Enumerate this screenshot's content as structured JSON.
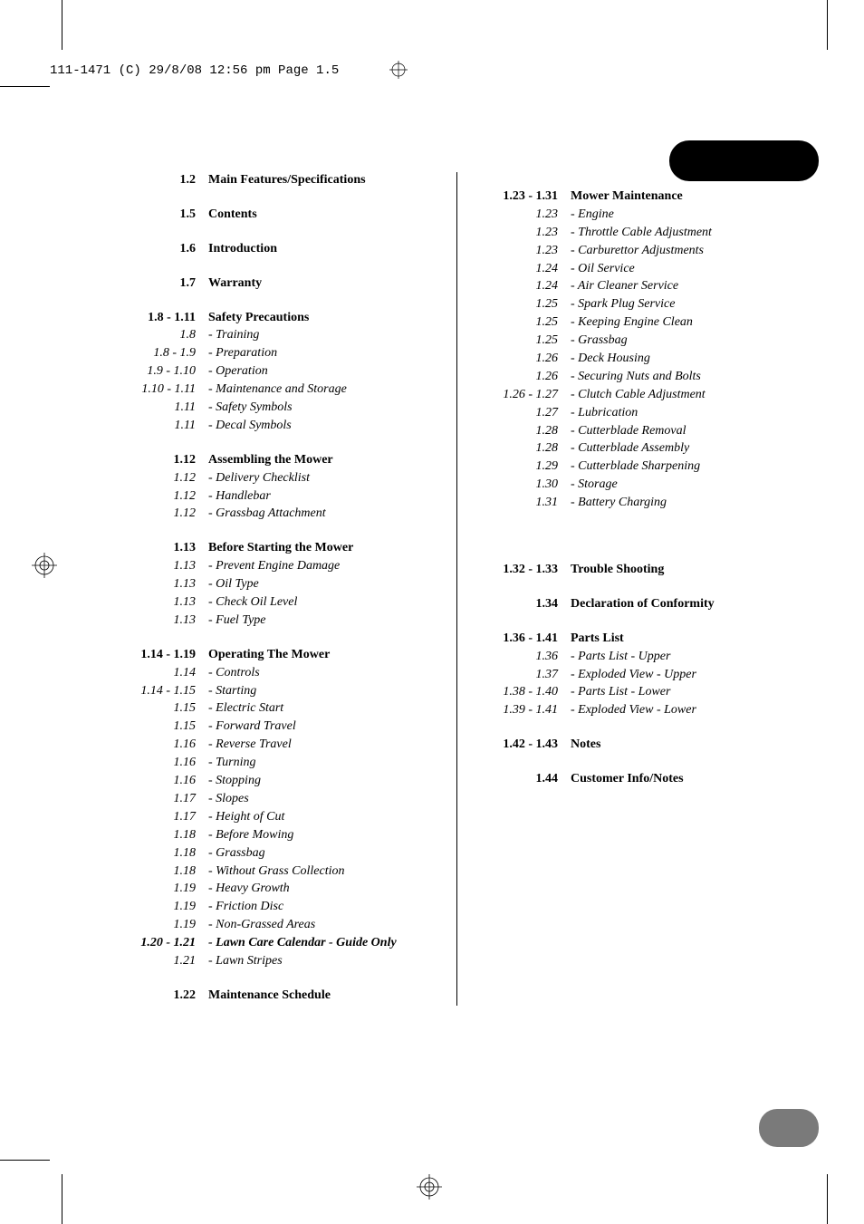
{
  "header": "111-1471 (C)  29/8/08  12:56 pm  Page 1.5",
  "left": [
    {
      "type": "row",
      "page": "1.2",
      "text": "Main Features/Specifications",
      "bold": true
    },
    {
      "type": "spacer"
    },
    {
      "type": "row",
      "page": "1.5",
      "text": "Contents",
      "bold": true
    },
    {
      "type": "spacer"
    },
    {
      "type": "row",
      "page": "1.6",
      "text": "Introduction",
      "bold": true
    },
    {
      "type": "spacer"
    },
    {
      "type": "row",
      "page": "1.7",
      "text": "Warranty",
      "bold": true
    },
    {
      "type": "spacer"
    },
    {
      "type": "row",
      "page": "1.8 - 1.11",
      "text": "Safety Precautions",
      "bold": true
    },
    {
      "type": "row",
      "page": "1.8",
      "text": "- Training",
      "italic": true
    },
    {
      "type": "row",
      "page": "1.8 - 1.9",
      "text": "- Preparation",
      "italic": true
    },
    {
      "type": "row",
      "page": "1.9 - 1.10",
      "text": "- Operation",
      "italic": true
    },
    {
      "type": "row",
      "page": "1.10 - 1.11",
      "text": "- Maintenance and Storage",
      "italic": true
    },
    {
      "type": "row",
      "page": "1.11",
      "text": "- Safety Symbols",
      "italic": true
    },
    {
      "type": "row",
      "page": "1.11",
      "text": "- Decal Symbols",
      "italic": true
    },
    {
      "type": "spacer"
    },
    {
      "type": "row",
      "page": "1.12",
      "text": "Assembling the Mower",
      "bold": true
    },
    {
      "type": "row",
      "page": "1.12",
      "text": "- Delivery Checklist",
      "italic": true
    },
    {
      "type": "row",
      "page": "1.12",
      "text": "- Handlebar",
      "italic": true
    },
    {
      "type": "row",
      "page": "1.12",
      "text": "- Grassbag Attachment",
      "italic": true
    },
    {
      "type": "spacer"
    },
    {
      "type": "row",
      "page": "1.13",
      "text": "Before Starting the Mower",
      "bold": true
    },
    {
      "type": "row",
      "page": "1.13",
      "text": "- Prevent Engine Damage",
      "italic": true
    },
    {
      "type": "row",
      "page": "1.13",
      "text": "- Oil Type",
      "italic": true
    },
    {
      "type": "row",
      "page": "1.13",
      "text": "- Check Oil Level",
      "italic": true
    },
    {
      "type": "row",
      "page": "1.13",
      "text": "- Fuel Type",
      "italic": true
    },
    {
      "type": "spacer"
    },
    {
      "type": "row",
      "page": "1.14 - 1.19",
      "text": "Operating The Mower",
      "bold": true
    },
    {
      "type": "row",
      "page": "1.14",
      "text": "- Controls",
      "italic": true
    },
    {
      "type": "row",
      "page": "1.14 - 1.15",
      "text": "- Starting",
      "italic": true
    },
    {
      "type": "row",
      "page": "1.15",
      "text": "- Electric Start",
      "italic": true
    },
    {
      "type": "row",
      "page": "1.15",
      "text": "- Forward Travel",
      "italic": true
    },
    {
      "type": "row",
      "page": "1.16",
      "text": "- Reverse Travel",
      "italic": true
    },
    {
      "type": "row",
      "page": "1.16",
      "text": "- Turning",
      "italic": true
    },
    {
      "type": "row",
      "page": "1.16",
      "text": "- Stopping",
      "italic": true
    },
    {
      "type": "row",
      "page": "1.17",
      "text": "- Slopes",
      "italic": true
    },
    {
      "type": "row",
      "page": "1.17",
      "text": "- Height of Cut",
      "italic": true
    },
    {
      "type": "row",
      "page": "1.18",
      "text": "- Before Mowing",
      "italic": true
    },
    {
      "type": "row",
      "page": "1.18",
      "text": "- Grassbag",
      "italic": true
    },
    {
      "type": "row",
      "page": "1.18",
      "text": "- Without Grass Collection",
      "italic": true
    },
    {
      "type": "row",
      "page": "1.19",
      "text": "- Heavy Growth",
      "italic": true
    },
    {
      "type": "row",
      "page": "1.19",
      "text": "- Friction Disc",
      "italic": true
    },
    {
      "type": "row",
      "page": "1.19",
      "text": "- Non-Grassed Areas",
      "italic": true
    },
    {
      "type": "row",
      "page": "1.20  - 1.21",
      "text": "- Lawn Care Calendar - Guide Only",
      "boldital": true
    },
    {
      "type": "row",
      "page": "1.21",
      "text": "- Lawn Stripes",
      "italic": true
    },
    {
      "type": "spacer"
    },
    {
      "type": "row",
      "page": "1.22",
      "text": "Maintenance Schedule",
      "bold": true
    }
  ],
  "right": [
    {
      "type": "spacer"
    },
    {
      "type": "row",
      "page": "1.23  - 1.31",
      "text": "Mower Maintenance",
      "bold": true
    },
    {
      "type": "row",
      "page": "1.23",
      "text": "- Engine",
      "italic": true
    },
    {
      "type": "row",
      "page": "1.23",
      "text": "- Throttle Cable Adjustment",
      "italic": true
    },
    {
      "type": "row",
      "page": "1.23",
      "text": "- Carburettor Adjustments",
      "italic": true
    },
    {
      "type": "row",
      "page": "1.24",
      "text": "- Oil Service",
      "italic": true
    },
    {
      "type": "row",
      "page": "1.24",
      "text": "- Air Cleaner Service",
      "italic": true
    },
    {
      "type": "row",
      "page": "1.25",
      "text": "- Spark Plug Service",
      "italic": true
    },
    {
      "type": "row",
      "page": "1.25",
      "text": "- Keeping Engine Clean",
      "italic": true
    },
    {
      "type": "row",
      "page": "1.25",
      "text": "- Grassbag",
      "italic": true
    },
    {
      "type": "row",
      "page": "1.26",
      "text": "- Deck Housing",
      "italic": true
    },
    {
      "type": "row",
      "page": "1.26",
      "text": "- Securing Nuts and Bolts",
      "italic": true
    },
    {
      "type": "row",
      "page": "1.26 - 1.27",
      "text": "- Clutch Cable Adjustment",
      "italic": true
    },
    {
      "type": "row",
      "page": "1.27",
      "text": "- Lubrication",
      "italic": true
    },
    {
      "type": "row",
      "page": "1.28",
      "text": "- Cutterblade Removal",
      "italic": true
    },
    {
      "type": "row",
      "page": "1.28",
      "text": "- Cutterblade Assembly",
      "italic": true
    },
    {
      "type": "row",
      "page": "1.29",
      "text": "- Cutterblade Sharpening",
      "italic": true
    },
    {
      "type": "row",
      "page": "1.30",
      "text": "- Storage",
      "italic": true
    },
    {
      "type": "row",
      "page": "1.31",
      "text": "- Battery Charging",
      "italic": true
    },
    {
      "type": "spacer"
    },
    {
      "type": "spacer"
    },
    {
      "type": "spacer"
    },
    {
      "type": "row",
      "page": "1.32 - 1.33",
      "text": "Trouble Shooting",
      "bold": true
    },
    {
      "type": "spacer"
    },
    {
      "type": "row",
      "page": "1.34",
      "text": "Declaration of Conformity",
      "bold": true
    },
    {
      "type": "spacer"
    },
    {
      "type": "row",
      "page": "1.36 - 1.41",
      "text": "Parts List",
      "bold": true
    },
    {
      "type": "row",
      "page": "1.36",
      "text": "- Parts List - Upper",
      "italic": true
    },
    {
      "type": "row",
      "page": "1.37",
      "text": "- Exploded View - Upper",
      "italic": true
    },
    {
      "type": "row",
      "page": "1.38 - 1.40",
      "text": "- Parts List - Lower",
      "italic": true
    },
    {
      "type": "row",
      "page": "1.39 - 1.41",
      "text": "- Exploded View - Lower",
      "italic": true
    },
    {
      "type": "spacer"
    },
    {
      "type": "row",
      "page": "1.42 - 1.43",
      "text": "Notes",
      "bold": true
    },
    {
      "type": "spacer"
    },
    {
      "type": "row",
      "page": "1.44",
      "text": "Customer Info/Notes",
      "bold": true
    }
  ]
}
